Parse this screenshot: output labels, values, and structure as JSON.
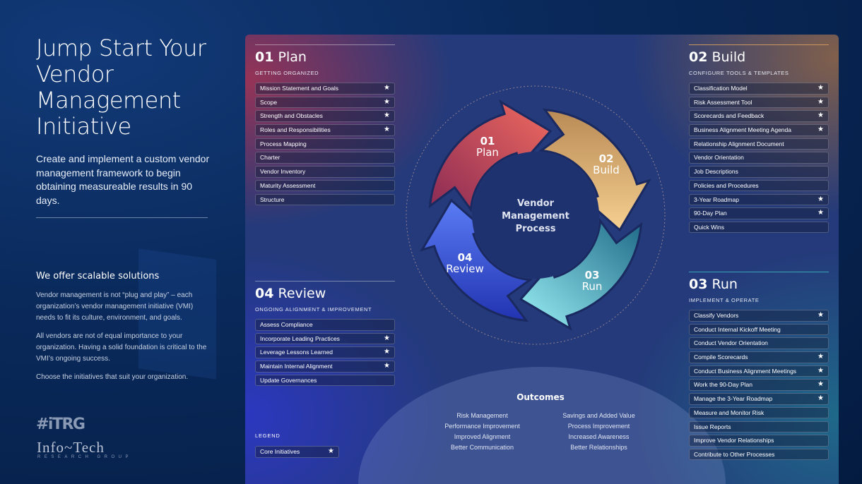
{
  "left": {
    "title": "Jump Start Your Vendor Management Initiative",
    "lead": "Create and implement a custom vendor management framework to begin obtaining measureable results in 90 days.",
    "offer_title": "We offer scalable solutions",
    "paragraphs": [
      "Vendor management is not “plug and play” – each organization’s vendor management initiative (VMI) needs to fit its culture, environment, and goals.",
      "All vendors are not of equal importance to your organization. Having a solid foundation is critical to the VMI’s ongoing success.",
      "Choose the initiatives that suit your organization."
    ],
    "logo_itrg": "#iTRG",
    "logo_infotech": "Info~Tech",
    "logo_sub": "RESEARCH GROUP"
  },
  "cycle": {
    "center": "Vendor Management Process",
    "steps": [
      {
        "num": "01",
        "label": "Plan",
        "color": "#d9565f"
      },
      {
        "num": "02",
        "label": "Build",
        "color": "#e0b070"
      },
      {
        "num": "03",
        "label": "Run",
        "color": "#5fd0e0"
      },
      {
        "num": "04",
        "label": "Review",
        "color": "#4e6cf0"
      }
    ]
  },
  "sections": [
    {
      "id": "plan",
      "num": "01",
      "name": "Plan",
      "sub": "GETTING ORGANIZED",
      "items": [
        {
          "label": "Mission Statement and Goals",
          "core": true
        },
        {
          "label": "Scope",
          "core": true
        },
        {
          "label": "Strength and Obstacles",
          "core": true
        },
        {
          "label": "Roles and Responsibilities",
          "core": true
        },
        {
          "label": "Process Mapping",
          "core": false
        },
        {
          "label": "Charter",
          "core": false
        },
        {
          "label": "Vendor Inventory",
          "core": false
        },
        {
          "label": "Maturity Assessment",
          "core": false
        },
        {
          "label": "Structure",
          "core": false
        }
      ]
    },
    {
      "id": "build",
      "num": "02",
      "name": "Build",
      "sub": "CONFIGURE TOOLS & TEMPLATES",
      "items": [
        {
          "label": "Classification Model",
          "core": true
        },
        {
          "label": "Risk Assessment Tool",
          "core": true
        },
        {
          "label": "Scorecards and Feedback",
          "core": true
        },
        {
          "label": "Business Alignment Meeting Agenda",
          "core": true
        },
        {
          "label": "Relationship Alignment Document",
          "core": false
        },
        {
          "label": "Vendor Orientation",
          "core": false
        },
        {
          "label": "Job Descriptions",
          "core": false
        },
        {
          "label": "Policies and Procedures",
          "core": false
        },
        {
          "label": "3-Year Roadmap",
          "core": true
        },
        {
          "label": "90-Day Plan",
          "core": true
        },
        {
          "label": "Quick Wins",
          "core": false
        }
      ]
    },
    {
      "id": "run",
      "num": "03",
      "name": "Run",
      "sub": "IMPLEMENT & OPERATE",
      "items": [
        {
          "label": "Classify Vendors",
          "core": true
        },
        {
          "label": "Conduct Internal Kickoff Meeting",
          "core": false
        },
        {
          "label": "Conduct Vendor Orientation",
          "core": false
        },
        {
          "label": "Compile Scorecards",
          "core": true
        },
        {
          "label": "Conduct Business Alignment Meetings",
          "core": true
        },
        {
          "label": "Work the 90-Day Plan",
          "core": true
        },
        {
          "label": "Manage the 3-Year Roadmap",
          "core": true
        },
        {
          "label": "Measure and Monitor Risk",
          "core": false
        },
        {
          "label": "Issue Reports",
          "core": false
        },
        {
          "label": "Improve Vendor Relationships",
          "core": false
        },
        {
          "label": "Contribute to Other Processes",
          "core": false
        }
      ]
    },
    {
      "id": "review",
      "num": "04",
      "name": "Review",
      "sub": "ONGOING ALIGNMENT & IMPROVEMENT",
      "items": [
        {
          "label": "Assess Compliance",
          "core": false
        },
        {
          "label": "Incorporate Leading Practices",
          "core": true
        },
        {
          "label": "Leverage Lessons Learned",
          "core": true
        },
        {
          "label": "Maintain Internal Alignment",
          "core": true
        },
        {
          "label": "Update Governances",
          "core": false
        }
      ]
    }
  ],
  "outcomes": {
    "title": "Outcomes",
    "items": [
      "Risk Management",
      "Savings and Added Value",
      "Performance Improvement",
      "Process Improvement",
      "Improved Alignment",
      "Increased Awareness",
      "Better Communication",
      "Better Relationships"
    ]
  },
  "legend": {
    "label": "LEGEND",
    "item": "Core Initiatives",
    "icon": "star-icon"
  }
}
